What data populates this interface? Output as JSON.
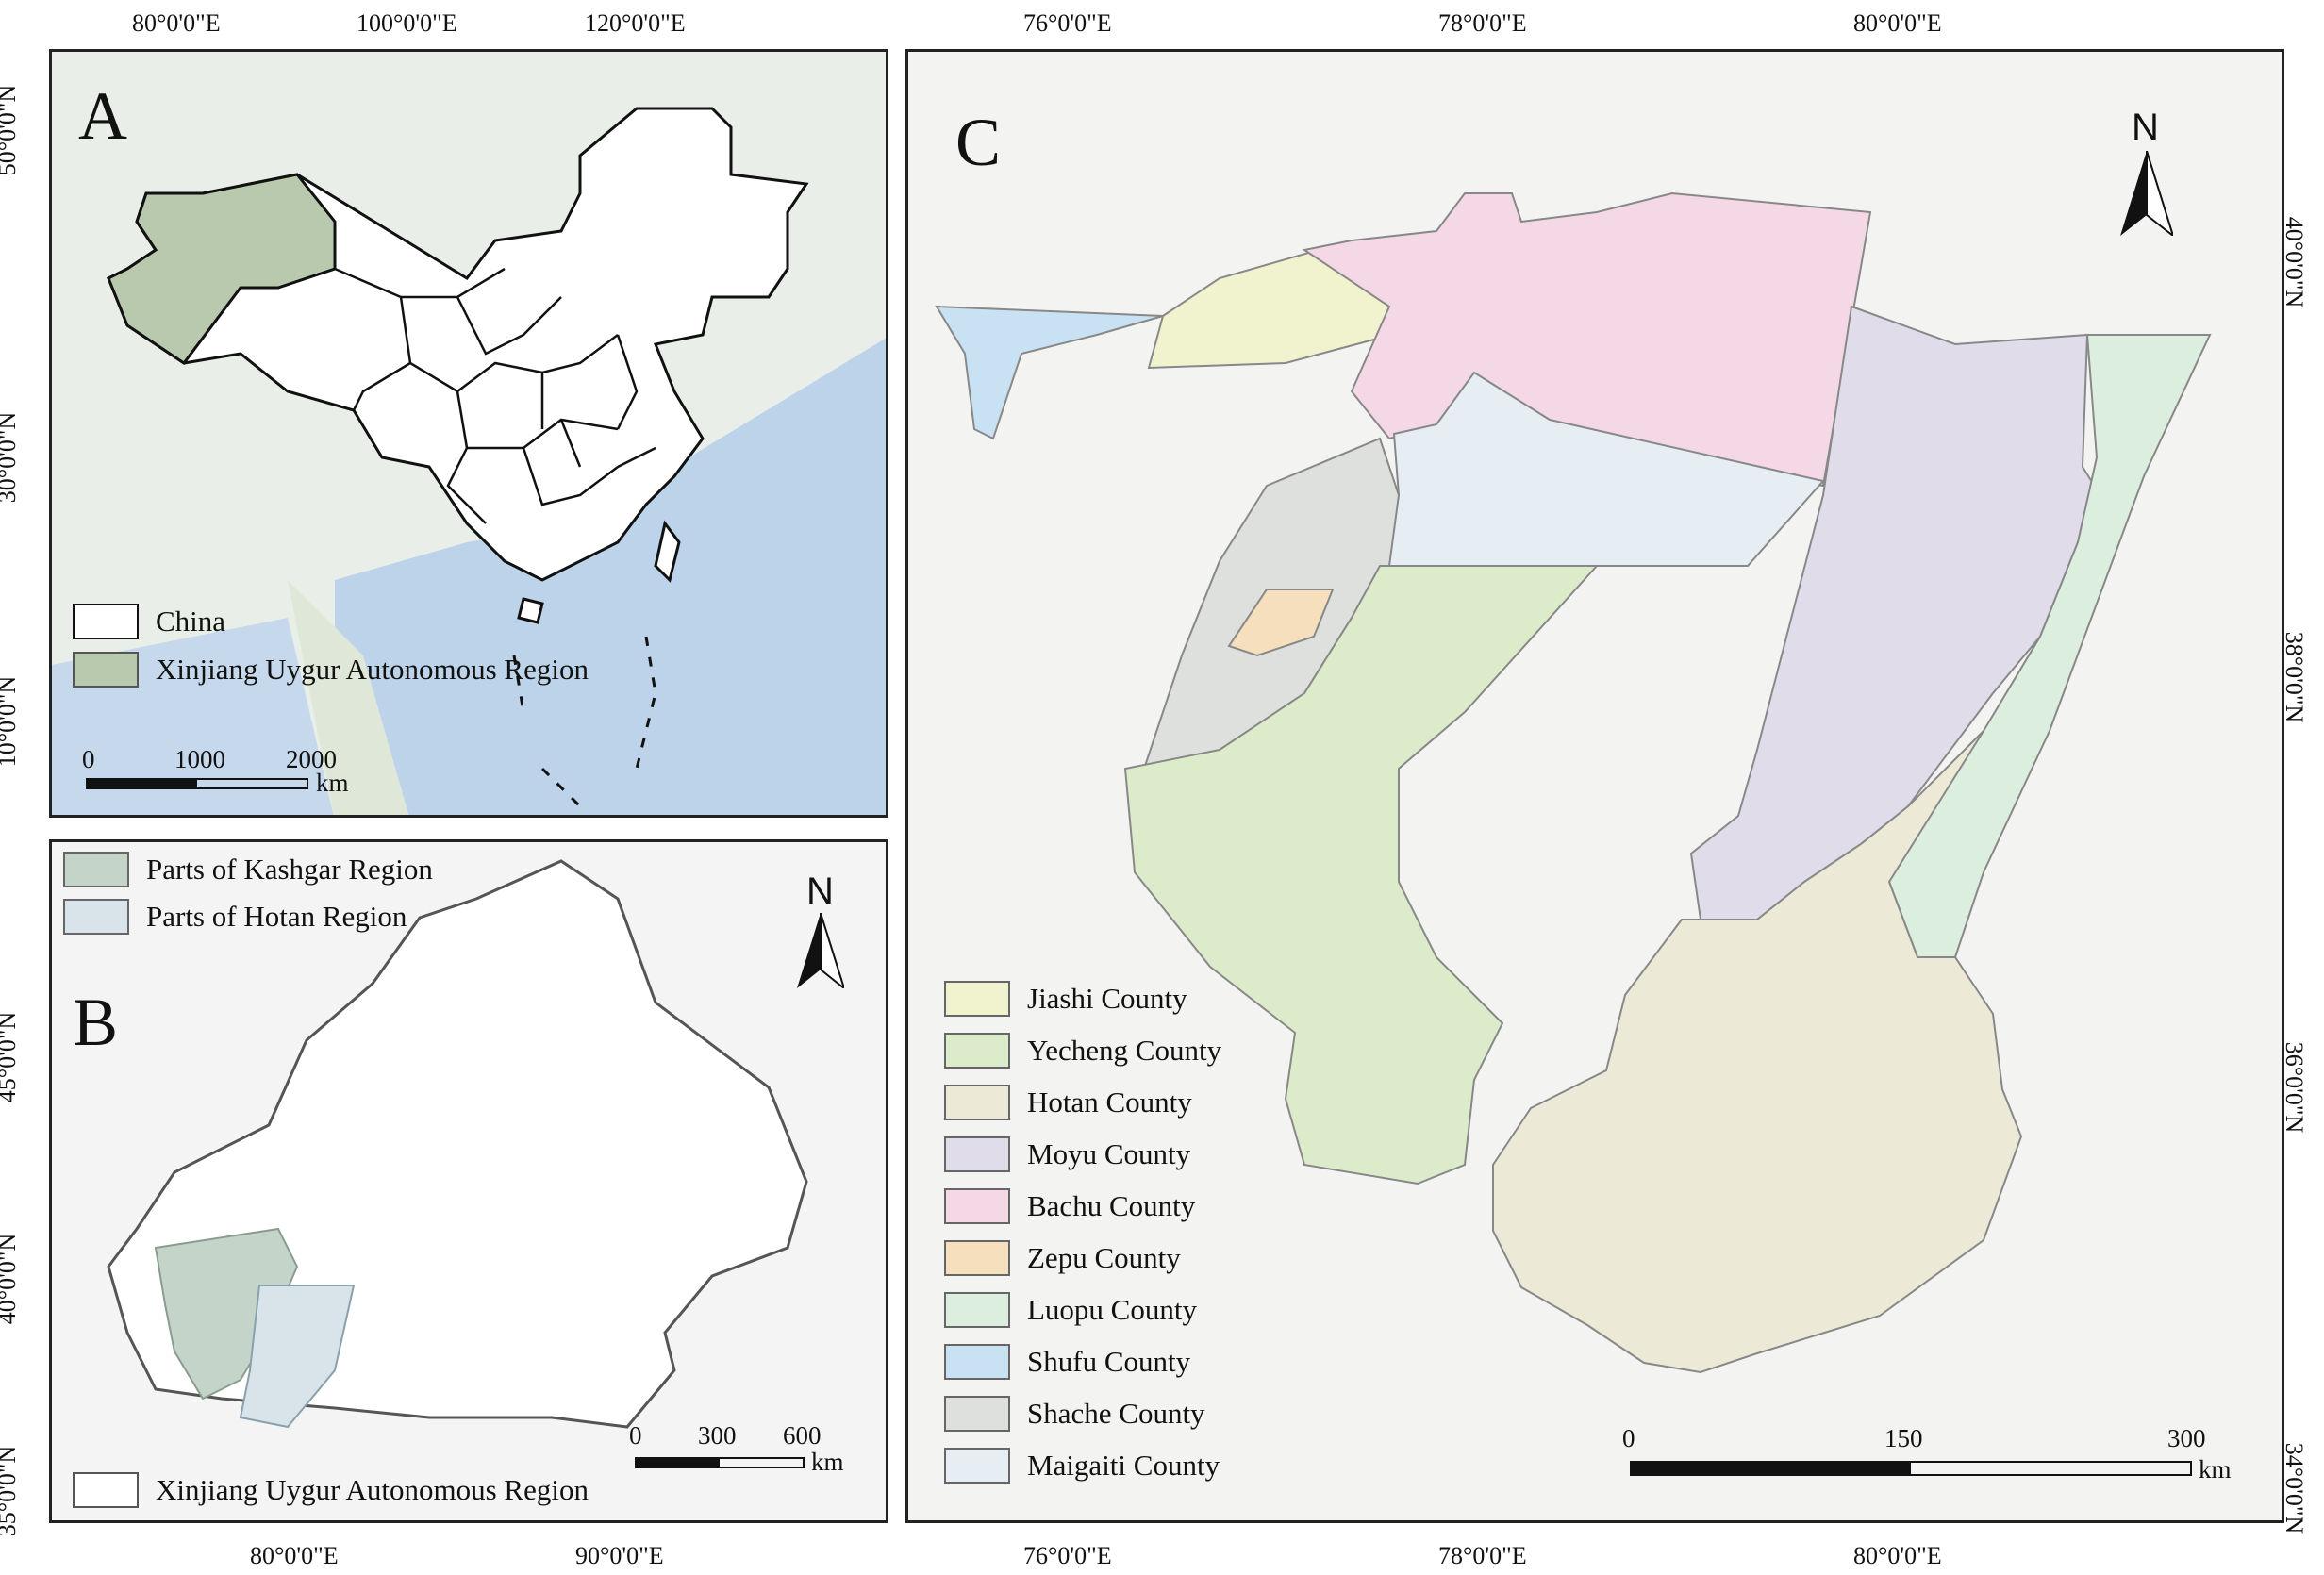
{
  "panels": {
    "a": {
      "letter": "A",
      "legend": [
        {
          "label": "China",
          "color": "#ffffff"
        },
        {
          "label": "Xinjiang Uygur Autonomous Region",
          "color": "#b9c9ad"
        }
      ],
      "scale": {
        "ticks": [
          "0",
          "1000",
          "2000"
        ],
        "unit": "km"
      },
      "lon_ticks": [
        "80°0'0\"E",
        "100°0'0\"E",
        "120°0'0\"E"
      ],
      "lat_ticks": [
        "50°0'0\"N",
        "30°0'0\"N",
        "10°0'0\"N"
      ]
    },
    "b": {
      "letter": "B",
      "north": "N",
      "legend": [
        {
          "label": "Parts of Kashgar Region",
          "color": "#c4d4c8"
        },
        {
          "label": "Parts of Hotan Region",
          "color": "#d8e4ea"
        },
        {
          "label": "Xinjiang Uygur Autonomous Region",
          "color": "#ffffff"
        }
      ],
      "scale": {
        "ticks": [
          "0",
          "300",
          "600"
        ],
        "unit": "km"
      },
      "lon_ticks": [
        "80°0'0\"E",
        "90°0'0\"E"
      ],
      "lat_ticks": [
        "45°0'0\"N",
        "40°0'0\"N",
        "35°0'0\"N"
      ]
    },
    "c": {
      "letter": "C",
      "north": "N",
      "legend": [
        {
          "label": "Jiashi County",
          "color": "#f1f3cf"
        },
        {
          "label": "Yecheng County",
          "color": "#dcebc9"
        },
        {
          "label": "Hotan County",
          "color": "#ece9d6"
        },
        {
          "label": "Moyu County",
          "color": "#e1dcea"
        },
        {
          "label": "Bachu County",
          "color": "#f4d8e6"
        },
        {
          "label": "Zepu County",
          "color": "#f6dfbd"
        },
        {
          "label": "Luopu County",
          "color": "#dcefdf"
        },
        {
          "label": "Shufu County",
          "color": "#c8e2f4"
        },
        {
          "label": "Shache County",
          "color": "#dde0dc"
        },
        {
          "label": "Maigaiti County",
          "color": "#e6edf3"
        }
      ],
      "scale": {
        "ticks": [
          "0",
          "150",
          "300"
        ],
        "unit": "km"
      },
      "lon_ticks": [
        "76°0'0\"E",
        "78°0'0\"E",
        "80°0'0\"E"
      ],
      "lat_ticks": [
        "40°0'0\"N",
        "38°0'0\"N",
        "36°0'0\"N",
        "34°0'0\"N"
      ]
    }
  }
}
